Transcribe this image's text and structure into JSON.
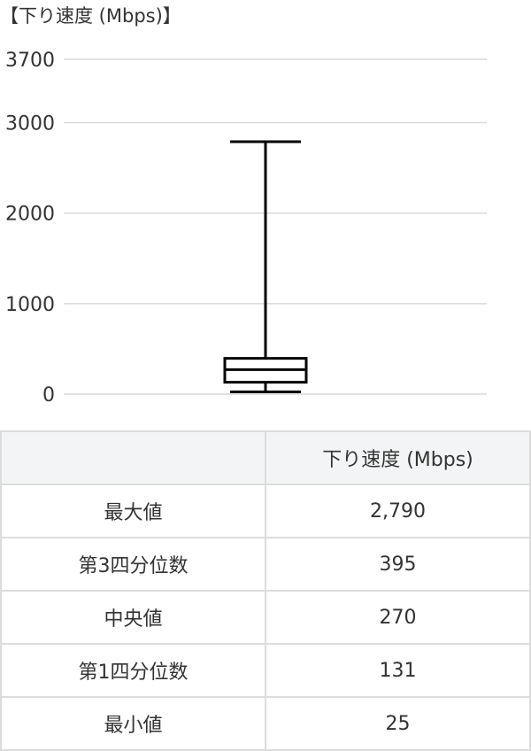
{
  "chart_data": {
    "type": "boxplot",
    "title": "【下り速度 (Mbps)】",
    "ylim": [
      0,
      3700
    ],
    "yticks": [
      0,
      1000,
      2000,
      3000,
      3700
    ],
    "ytick_labels": [
      "0",
      "1000",
      "2000",
      "3000",
      "3700"
    ],
    "grid": true,
    "series": [
      {
        "min": 25,
        "q1": 131,
        "median": 270,
        "q3": 395,
        "max": 2790
      }
    ],
    "colors": {
      "box": "#000000",
      "grid": "#d9d9d9"
    }
  },
  "table": {
    "header": [
      "",
      "下り速度 (Mbps)"
    ],
    "rows": [
      {
        "label": "最大値",
        "value": "2,790"
      },
      {
        "label": "第3四分位数",
        "value": "395"
      },
      {
        "label": "中央値",
        "value": "270"
      },
      {
        "label": "第1四分位数",
        "value": "131"
      },
      {
        "label": "最小値",
        "value": "25"
      }
    ]
  }
}
